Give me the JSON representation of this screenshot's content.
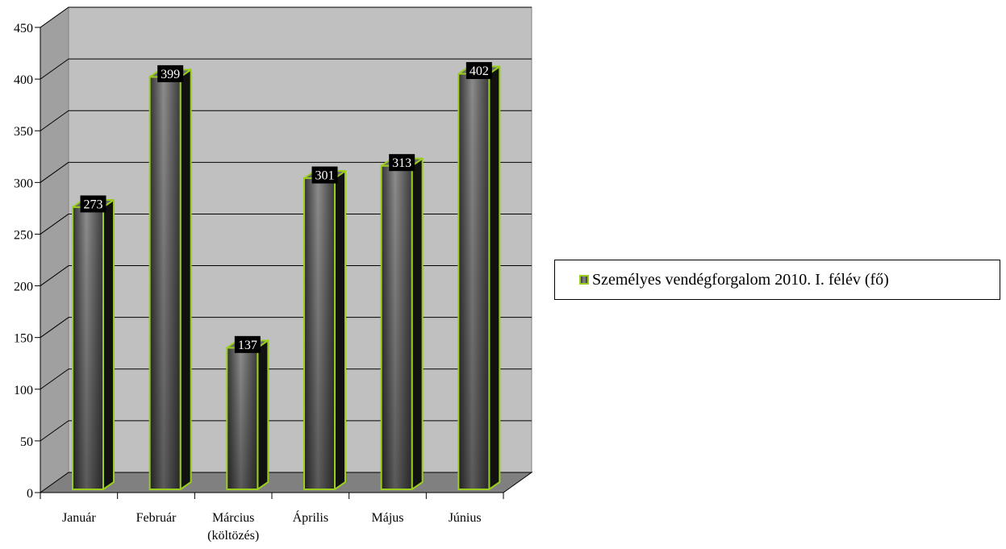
{
  "chart_data": {
    "type": "bar",
    "categories": [
      "Január",
      "Február",
      "Március\n(költözés)",
      "Április",
      "Május",
      "Június"
    ],
    "series": [
      {
        "name": "Személyes vendégforgalom 2010. I. félév (fő)",
        "values": [
          273,
          399,
          137,
          301,
          313,
          402
        ]
      }
    ],
    "data_labels": [
      "273",
      "399",
      "137",
      "301",
      "313",
      "402"
    ],
    "y_ticks": [
      "0",
      "50",
      "100",
      "150",
      "200",
      "250",
      "300",
      "350",
      "400",
      "450"
    ],
    "ylim": [
      0,
      450
    ],
    "grid": true,
    "legend_position": "right",
    "style": "3d-column",
    "colors": {
      "bar_outline": "#9acd1e",
      "bar_fill": "#5a5a5a",
      "wall": "#c0c0c0",
      "floor": "#808080",
      "label_bg": "#000000",
      "label_text": "#ffffff"
    }
  }
}
